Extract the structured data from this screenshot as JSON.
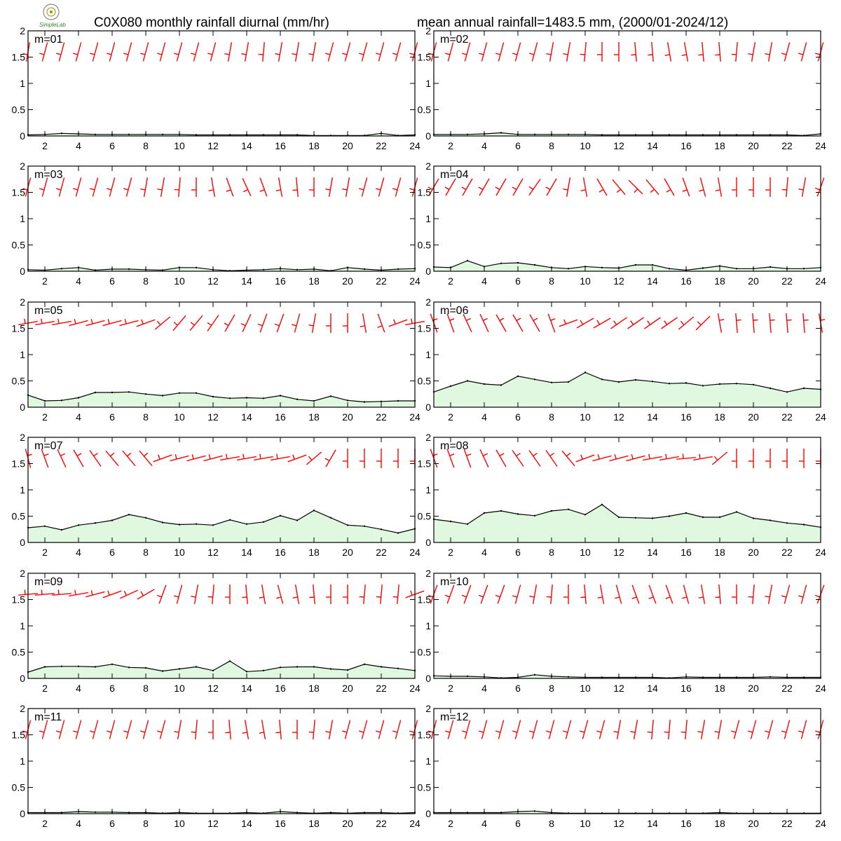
{
  "header": {
    "title_left": "C0X080 monthly rainfall diurnal (mm/hr)",
    "title_right": "mean annual rainfall=1483.5 mm, (2000/01-2024/12)",
    "logo_text": "SimpleLab"
  },
  "colors": {
    "area_fill": "#dff8df",
    "line": "#000000",
    "wind_barb": "#ff0000",
    "frame": "#000000"
  },
  "chart_data": {
    "type": "area",
    "x": [
      1,
      2,
      3,
      4,
      5,
      6,
      7,
      8,
      9,
      10,
      11,
      12,
      13,
      14,
      15,
      16,
      17,
      18,
      19,
      20,
      21,
      22,
      23,
      24
    ],
    "xticks": [
      "2",
      "4",
      "6",
      "8",
      "10",
      "12",
      "14",
      "16",
      "18",
      "20",
      "22",
      "24"
    ],
    "yticks": [
      "0",
      "0.5",
      "1",
      "1.5",
      "2"
    ],
    "ylim": [
      0,
      2
    ],
    "xlim": [
      1,
      24
    ],
    "overlay": "wind barbs drawn near y=1.6 for each hour",
    "panels": [
      {
        "label": "m=01",
        "values": [
          0.02,
          0.03,
          0.05,
          0.04,
          0.03,
          0.03,
          0.03,
          0.03,
          0.03,
          0.03,
          0.02,
          0.02,
          0.02,
          0.02,
          0.02,
          0.02,
          0.02,
          0.01,
          0.01,
          0.01,
          0.01,
          0.05,
          0.01,
          0.02
        ],
        "wind_dir": [
          190,
          195,
          195,
          195,
          195,
          195,
          195,
          195,
          195,
          195,
          195,
          195,
          190,
          190,
          185,
          190,
          190,
          190,
          195,
          195,
          195,
          195,
          195,
          195
        ]
      },
      {
        "label": "m=02",
        "values": [
          0.03,
          0.03,
          0.03,
          0.04,
          0.06,
          0.03,
          0.03,
          0.03,
          0.03,
          0.03,
          0.02,
          0.02,
          0.02,
          0.02,
          0.02,
          0.02,
          0.02,
          0.02,
          0.02,
          0.02,
          0.02,
          0.02,
          0.01,
          0.04
        ],
        "wind_dir": [
          195,
          195,
          195,
          195,
          195,
          195,
          195,
          190,
          190,
          185,
          180,
          180,
          175,
          175,
          170,
          170,
          175,
          175,
          185,
          190,
          190,
          195,
          195,
          195
        ]
      },
      {
        "label": "m=03",
        "values": [
          0.03,
          0.02,
          0.05,
          0.07,
          0.02,
          0.04,
          0.04,
          0.03,
          0.02,
          0.07,
          0.07,
          0.03,
          0.01,
          0.02,
          0.03,
          0.05,
          0.03,
          0.04,
          0.01,
          0.07,
          0.04,
          0.02,
          0.04,
          0.05
        ],
        "wind_dir": [
          195,
          195,
          195,
          195,
          195,
          195,
          195,
          190,
          190,
          185,
          180,
          170,
          160,
          155,
          160,
          170,
          175,
          180,
          190,
          190,
          195,
          195,
          195,
          195
        ]
      },
      {
        "label": "m=04",
        "values": [
          0.08,
          0.07,
          0.2,
          0.09,
          0.15,
          0.16,
          0.12,
          0.07,
          0.05,
          0.09,
          0.07,
          0.06,
          0.12,
          0.12,
          0.05,
          0.02,
          0.06,
          0.1,
          0.05,
          0.05,
          0.08,
          0.05,
          0.05,
          0.07
        ],
        "wind_dir": [
          210,
          210,
          210,
          210,
          210,
          210,
          215,
          210,
          190,
          170,
          150,
          140,
          135,
          140,
          150,
          160,
          165,
          170,
          180,
          180,
          180,
          185,
          190,
          200
        ]
      },
      {
        "label": "m=05",
        "values": [
          0.23,
          0.12,
          0.13,
          0.18,
          0.28,
          0.28,
          0.29,
          0.25,
          0.22,
          0.27,
          0.27,
          0.2,
          0.17,
          0.18,
          0.17,
          0.22,
          0.15,
          0.12,
          0.21,
          0.13,
          0.1,
          0.11,
          0.12,
          0.12
        ],
        "wind_dir": [
          260,
          260,
          260,
          255,
          255,
          255,
          255,
          250,
          230,
          220,
          220,
          215,
          210,
          205,
          200,
          200,
          195,
          190,
          180,
          180,
          170,
          160,
          250,
          260
        ]
      },
      {
        "label": "m=06",
        "values": [
          0.29,
          0.4,
          0.5,
          0.44,
          0.42,
          0.59,
          0.53,
          0.47,
          0.48,
          0.66,
          0.53,
          0.48,
          0.52,
          0.49,
          0.45,
          0.46,
          0.41,
          0.44,
          0.45,
          0.43,
          0.36,
          0.29,
          0.36,
          0.34
        ],
        "wind_dir": [
          340,
          340,
          335,
          335,
          330,
          330,
          330,
          340,
          250,
          240,
          240,
          235,
          235,
          235,
          235,
          230,
          225,
          350,
          355,
          355,
          355,
          355,
          355,
          350
        ]
      },
      {
        "label": "m=07",
        "values": [
          0.28,
          0.31,
          0.24,
          0.33,
          0.37,
          0.42,
          0.53,
          0.47,
          0.38,
          0.34,
          0.35,
          0.33,
          0.43,
          0.35,
          0.39,
          0.51,
          0.42,
          0.61,
          0.47,
          0.33,
          0.31,
          0.25,
          0.18,
          0.26
        ],
        "wind_dir": [
          345,
          340,
          335,
          330,
          325,
          320,
          320,
          320,
          250,
          255,
          255,
          255,
          260,
          260,
          260,
          260,
          250,
          230,
          210,
          180,
          180,
          180,
          180,
          180
        ]
      },
      {
        "label": "m=08",
        "values": [
          0.44,
          0.4,
          0.35,
          0.56,
          0.6,
          0.54,
          0.51,
          0.6,
          0.63,
          0.53,
          0.72,
          0.48,
          0.47,
          0.46,
          0.5,
          0.56,
          0.48,
          0.48,
          0.58,
          0.46,
          0.42,
          0.37,
          0.34,
          0.29
        ],
        "wind_dir": [
          340,
          340,
          340,
          335,
          330,
          325,
          325,
          325,
          320,
          250,
          255,
          255,
          255,
          260,
          260,
          265,
          260,
          230,
          180,
          180,
          180,
          180,
          180,
          180
        ]
      },
      {
        "label": "m=09",
        "values": [
          0.12,
          0.22,
          0.23,
          0.23,
          0.22,
          0.27,
          0.21,
          0.2,
          0.14,
          0.18,
          0.22,
          0.15,
          0.33,
          0.13,
          0.15,
          0.21,
          0.22,
          0.22,
          0.18,
          0.16,
          0.27,
          0.22,
          0.19,
          0.15
        ],
        "wind_dir": [
          265,
          265,
          265,
          260,
          255,
          250,
          245,
          240,
          200,
          195,
          190,
          185,
          180,
          175,
          170,
          165,
          170,
          175,
          180,
          180,
          185,
          185,
          185,
          250
        ]
      },
      {
        "label": "m=10",
        "values": [
          0.05,
          0.04,
          0.04,
          0.03,
          0.01,
          0.02,
          0.07,
          0.04,
          0.03,
          0.02,
          0.02,
          0.02,
          0.02,
          0.02,
          0.01,
          0.03,
          0.02,
          0.02,
          0.02,
          0.02,
          0.03,
          0.02,
          0.02,
          0.02
        ],
        "wind_dir": [
          200,
          200,
          200,
          200,
          200,
          195,
          190,
          185,
          180,
          175,
          170,
          165,
          160,
          160,
          160,
          165,
          170,
          175,
          180,
          185,
          190,
          195,
          195,
          200
        ]
      },
      {
        "label": "m=11",
        "values": [
          0.02,
          0.02,
          0.02,
          0.04,
          0.03,
          0.03,
          0.02,
          0.02,
          0.01,
          0.02,
          0.01,
          0.01,
          0.01,
          0.02,
          0.01,
          0.04,
          0.02,
          0.01,
          0.02,
          0.01,
          0.02,
          0.02,
          0.01,
          0.02
        ],
        "wind_dir": [
          195,
          195,
          195,
          195,
          195,
          195,
          195,
          195,
          195,
          190,
          185,
          180,
          175,
          170,
          170,
          175,
          180,
          185,
          190,
          195,
          195,
          195,
          195,
          195
        ]
      },
      {
        "label": "m=12",
        "values": [
          0.02,
          0.02,
          0.02,
          0.02,
          0.02,
          0.04,
          0.05,
          0.02,
          0.01,
          0.01,
          0.01,
          0.01,
          0.01,
          0.01,
          0.01,
          0.01,
          0.01,
          0.02,
          0.01,
          0.01,
          0.01,
          0.01,
          0.01,
          0.01
        ],
        "wind_dir": [
          195,
          195,
          195,
          195,
          195,
          195,
          195,
          195,
          195,
          195,
          195,
          190,
          190,
          185,
          185,
          185,
          190,
          190,
          195,
          195,
          195,
          195,
          195,
          195
        ]
      }
    ]
  }
}
